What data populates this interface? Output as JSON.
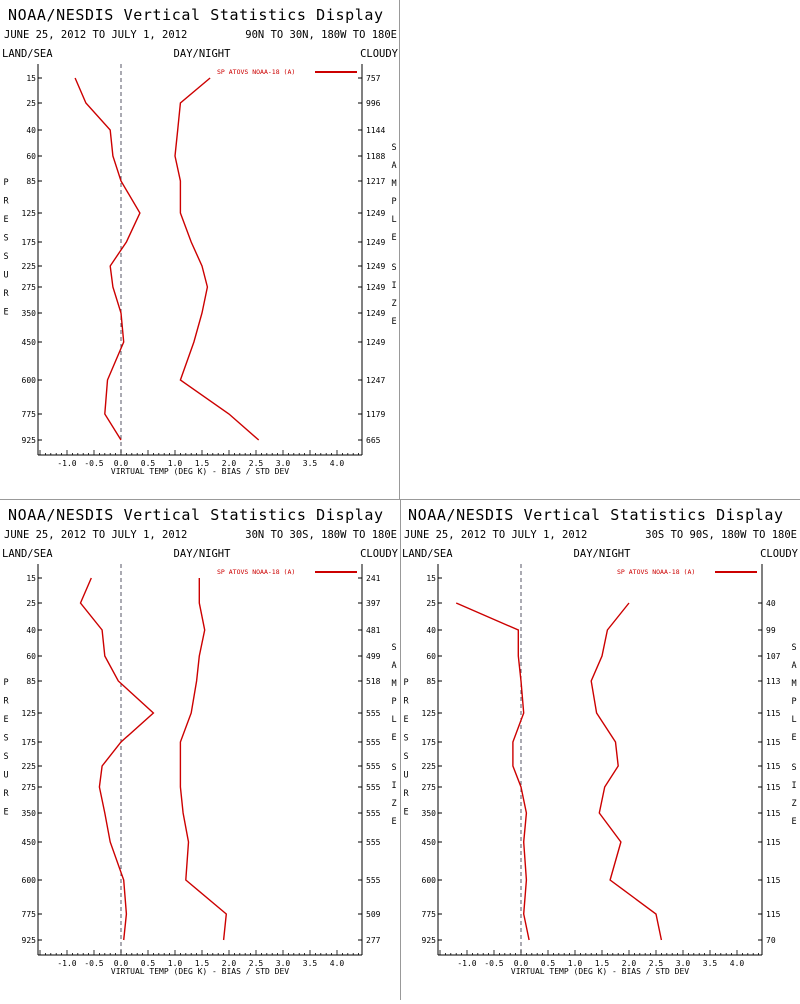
{
  "chart_data": [
    {
      "type": "line",
      "title": "NOAA/NESDIS Vertical Statistics Display",
      "date_range": "JUNE 25, 2012 TO JULY 1, 2012",
      "region": "90N TO 30N, 180W TO 180E",
      "left_label": "LAND/SEA",
      "center_label": "DAY/NIGHT",
      "right_label": "CLOUDY",
      "xlabel": "VIRTUAL TEMP (DEG K) - BIAS / STD DEV",
      "ylabel": "PRESSURE",
      "y2label": "SAMPLE SIZE",
      "legend": "SP ATOVS NOAA-18 (A)",
      "color": "#cc0000",
      "xlim": [
        -1.5,
        4.5
      ],
      "x_ticks": [
        "-1.0",
        "-0.5",
        "0.0",
        "0.5",
        "1.0",
        "1.5",
        "2.0",
        "2.5",
        "3.0",
        "3.5",
        "4.0"
      ],
      "pressure_levels": [
        "15",
        "25",
        "40",
        "60",
        "85",
        "125",
        "175",
        "225",
        "275",
        "350",
        "450",
        "600",
        "775",
        "925"
      ],
      "sample_size": [
        "757",
        "996",
        "1144",
        "1188",
        "1217",
        "1249",
        "1249",
        "1249",
        "1249",
        "1249",
        "1249",
        "1247",
        "1179",
        "665"
      ],
      "series": [
        {
          "name": "bias",
          "values": [
            -0.85,
            -0.65,
            -0.2,
            -0.15,
            0.0,
            0.35,
            0.1,
            -0.2,
            -0.15,
            0.0,
            0.05,
            -0.25,
            -0.3,
            0.0
          ]
        },
        {
          "name": "std dev",
          "values": [
            1.65,
            1.1,
            1.05,
            1.0,
            1.1,
            1.1,
            1.3,
            1.5,
            1.6,
            1.5,
            1.35,
            1.1,
            2.0,
            2.55
          ]
        }
      ]
    },
    {
      "type": "line",
      "title": "NOAA/NESDIS Vertical Statistics Display",
      "date_range": "JUNE 25, 2012 TO JULY 1, 2012",
      "region": "30N TO 30S, 180W TO 180E",
      "left_label": "LAND/SEA",
      "center_label": "DAY/NIGHT",
      "right_label": "CLOUDY",
      "xlabel": "VIRTUAL TEMP (DEG K) - BIAS / STD DEV",
      "ylabel": "PRESSURE",
      "y2label": "SAMPLE SIZE",
      "legend": "SP ATOVS NOAA-18 (A)",
      "color": "#cc0000",
      "xlim": [
        -1.5,
        4.5
      ],
      "x_ticks": [
        "-1.0",
        "-0.5",
        "0.0",
        "0.5",
        "1.0",
        "1.5",
        "2.0",
        "2.5",
        "3.0",
        "3.5",
        "4.0"
      ],
      "pressure_levels": [
        "15",
        "25",
        "40",
        "60",
        "85",
        "125",
        "175",
        "225",
        "275",
        "350",
        "450",
        "600",
        "775",
        "925"
      ],
      "sample_size": [
        "241",
        "397",
        "481",
        "499",
        "518",
        "555",
        "555",
        "555",
        "555",
        "555",
        "555",
        "555",
        "509",
        "277"
      ],
      "series": [
        {
          "name": "bias",
          "values": [
            -0.55,
            -0.75,
            -0.35,
            -0.3,
            -0.05,
            0.6,
            0.0,
            -0.35,
            -0.4,
            -0.3,
            -0.2,
            0.05,
            0.1,
            0.05
          ]
        },
        {
          "name": "std dev",
          "values": [
            1.45,
            1.45,
            1.55,
            1.45,
            1.4,
            1.3,
            1.1,
            1.1,
            1.1,
            1.15,
            1.25,
            1.2,
            1.95,
            1.9
          ]
        }
      ]
    },
    {
      "type": "line",
      "title": "NOAA/NESDIS Vertical Statistics Display",
      "date_range": "JUNE 25, 2012 TO JULY 1, 2012",
      "region": "30S TO 90S, 180W TO 180E",
      "left_label": "LAND/SEA",
      "center_label": "DAY/NIGHT",
      "right_label": "CLOUDY",
      "xlabel": "VIRTUAL TEMP (DEG K) - BIAS / STD DEV",
      "ylabel": "PRESSURE",
      "y2label": "SAMPLE SIZE",
      "legend": "SP ATOVS NOAA-18 (A)",
      "color": "#cc0000",
      "xlim": [
        -1.5,
        4.5
      ],
      "x_ticks": [
        "-1.0",
        "-0.5",
        "0.0",
        "0.5",
        "1.0",
        "1.5",
        "2.0",
        "2.5",
        "3.0",
        "3.5",
        "4.0"
      ],
      "pressure_levels": [
        "15",
        "25",
        "40",
        "60",
        "85",
        "125",
        "175",
        "225",
        "275",
        "350",
        "450",
        "600",
        "775",
        "925"
      ],
      "sample_size": [
        "",
        "40",
        "99",
        "107",
        "113",
        "115",
        "115",
        "115",
        "115",
        "115",
        "115",
        "115",
        "115",
        "70"
      ],
      "series": [
        {
          "name": "bias",
          "values": [
            null,
            -1.2,
            -0.05,
            -0.05,
            0.0,
            0.05,
            -0.15,
            -0.15,
            0.0,
            0.1,
            0.05,
            0.1,
            0.05,
            0.15
          ]
        },
        {
          "name": "std dev",
          "values": [
            null,
            2.0,
            1.6,
            1.5,
            1.3,
            1.4,
            1.75,
            1.8,
            1.55,
            1.45,
            1.85,
            1.65,
            2.5,
            2.6
          ]
        }
      ]
    }
  ]
}
